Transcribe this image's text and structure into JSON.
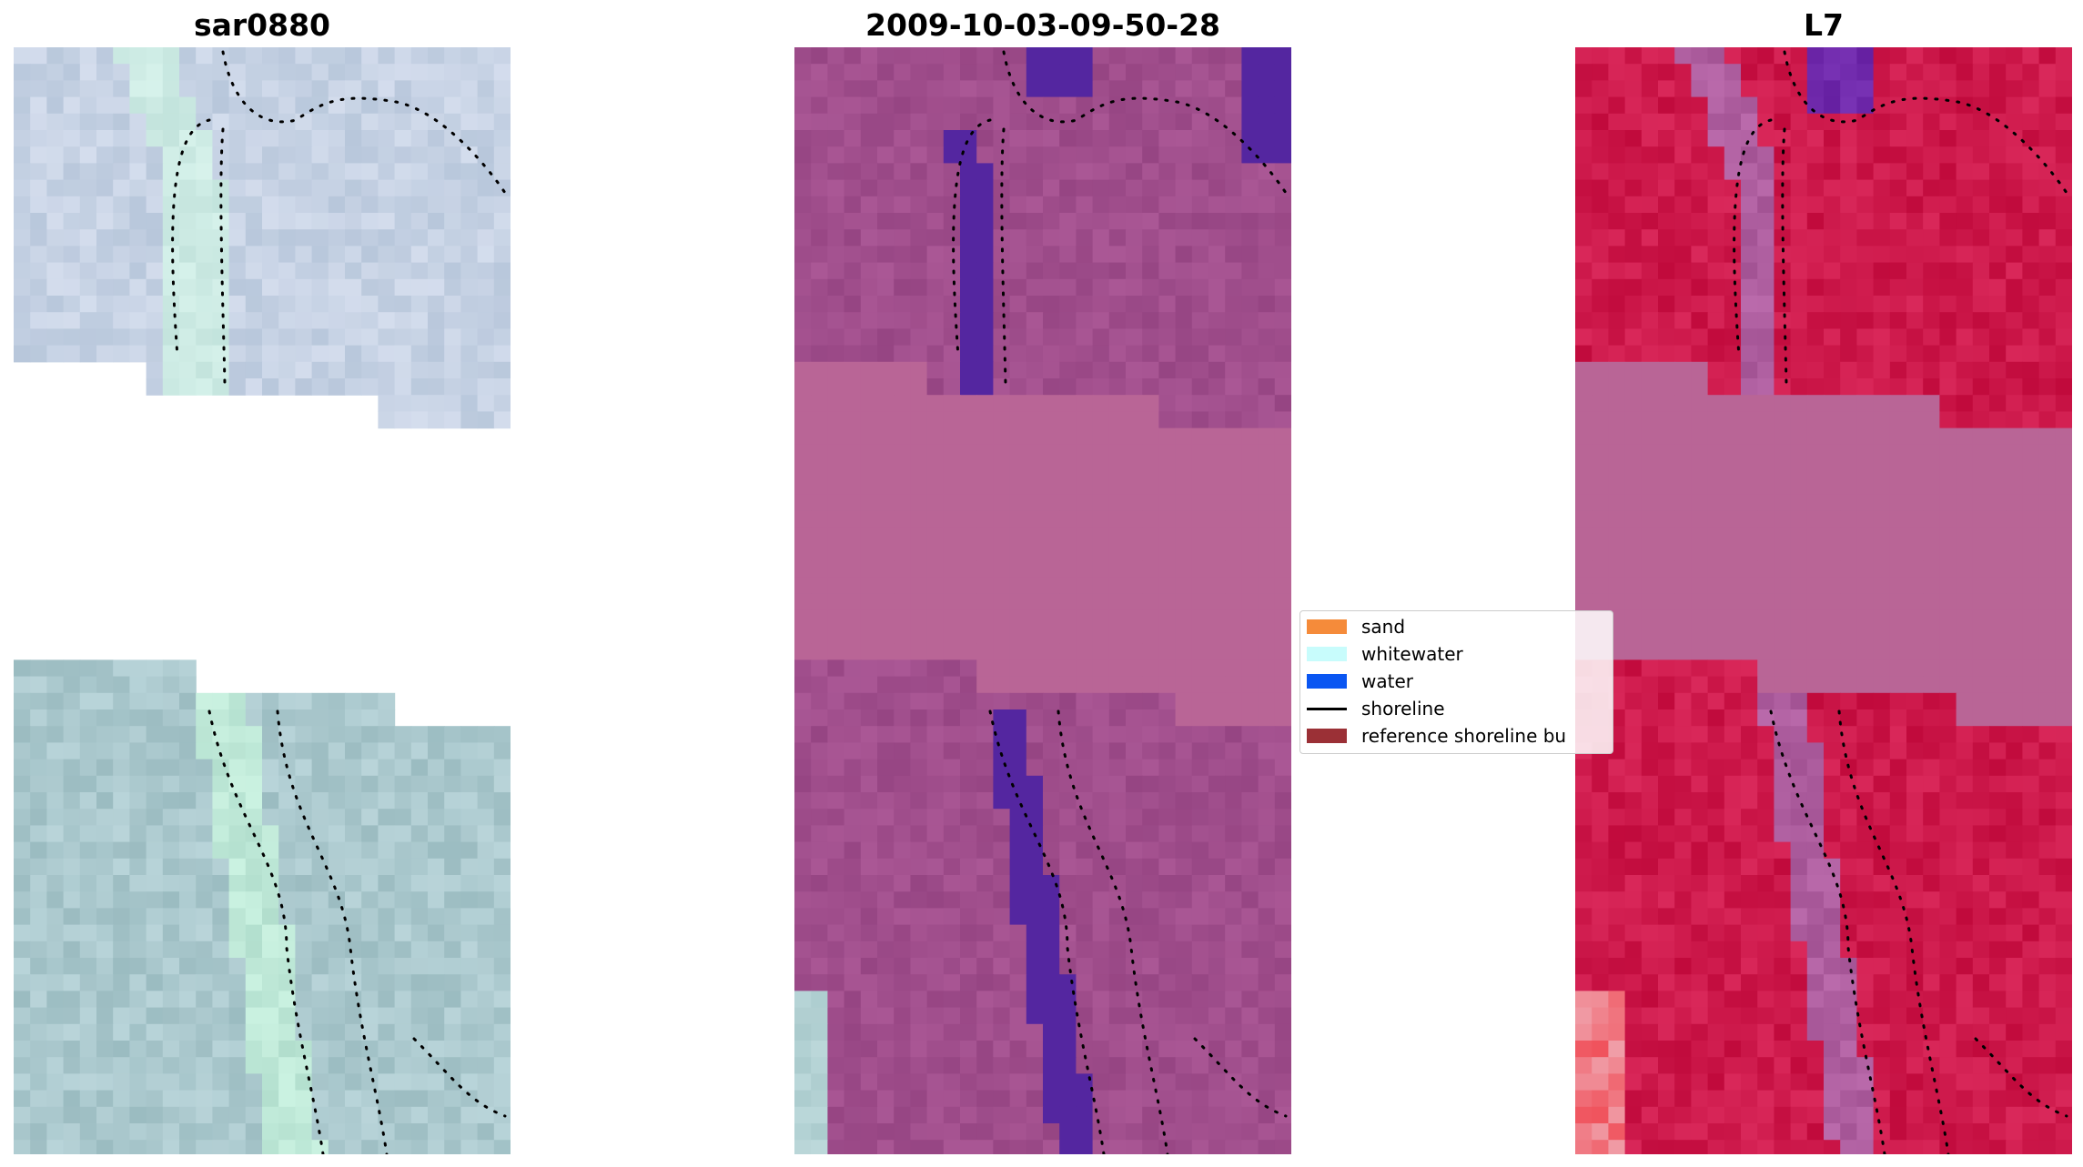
{
  "panels": [
    {
      "title": "sar0880",
      "style": "rgb"
    },
    {
      "title": "2009-10-03-09-50-28",
      "style": "classified"
    },
    {
      "title": "L7",
      "style": "index"
    }
  ],
  "legend": {
    "items": [
      {
        "label": "sand",
        "color": "#f58b3a",
        "kind": "patch"
      },
      {
        "label": "whitewater",
        "color": "#c8fcfc",
        "kind": "patch"
      },
      {
        "label": "water",
        "color": "#0a56f2",
        "kind": "patch"
      },
      {
        "label": "shoreline",
        "color": "#000000",
        "kind": "line"
      },
      {
        "label": "reference shoreline bu",
        "color": "#9b3036",
        "kind": "patch"
      }
    ]
  },
  "colors": {
    "nodata_classified": "#b96596",
    "nodata_index": "#b96596",
    "water_class": "#5426a0"
  }
}
